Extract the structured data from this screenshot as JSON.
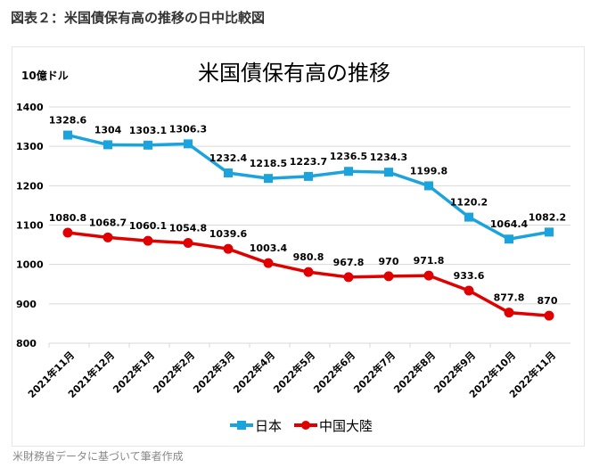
{
  "figure_title": "図表２：米国債保有高の推移の日中比較図",
  "caption": "米財務省データに基づいて筆者作成",
  "chart_data": {
    "type": "line",
    "title": "米国債保有高の推移",
    "ylabel": "10億ドル",
    "xlabel": "",
    "ylim": [
      800,
      1400
    ],
    "yticks": [
      "800",
      "900",
      "1000",
      "1100",
      "1200",
      "1300",
      "1400"
    ],
    "grid": true,
    "legend": "bottom",
    "categories": [
      "2021年11月",
      "2021年12月",
      "2022年1月",
      "2022年2月",
      "2022年3月",
      "2022年4月",
      "2022年5月",
      "2022年6月",
      "2022年7月",
      "2022年8月",
      "2022年9月",
      "2022年10月",
      "2022年11月"
    ],
    "series": [
      {
        "name": "日本",
        "color": "#1aa3dd",
        "marker": "square",
        "values": [
          1328.6,
          1304,
          1303.1,
          1306.3,
          1232.4,
          1218.5,
          1223.7,
          1236.5,
          1234.3,
          1199.8,
          1120.2,
          1064.4,
          1082.2
        ],
        "labels": [
          "1328.6",
          "1304",
          "1303.1",
          "1306.3",
          "1232.4",
          "1218.5",
          "1223.7",
          "1236.5",
          "1234.3",
          "1199.8",
          "1120.2",
          "1064.4",
          "1082.2"
        ]
      },
      {
        "name": "中国大陸",
        "color": "#e00000",
        "marker": "circle",
        "values": [
          1080.8,
          1068.7,
          1060.1,
          1054.8,
          1039.6,
          1003.4,
          980.8,
          967.8,
          970,
          971.8,
          933.6,
          877.8,
          870
        ],
        "labels": [
          "1080.8",
          "1068.7",
          "1060.1",
          "1054.8",
          "1039.6",
          "1003.4",
          "980.8",
          "967.8",
          "970",
          "971.8",
          "933.6",
          "877.8",
          "870"
        ]
      }
    ]
  }
}
